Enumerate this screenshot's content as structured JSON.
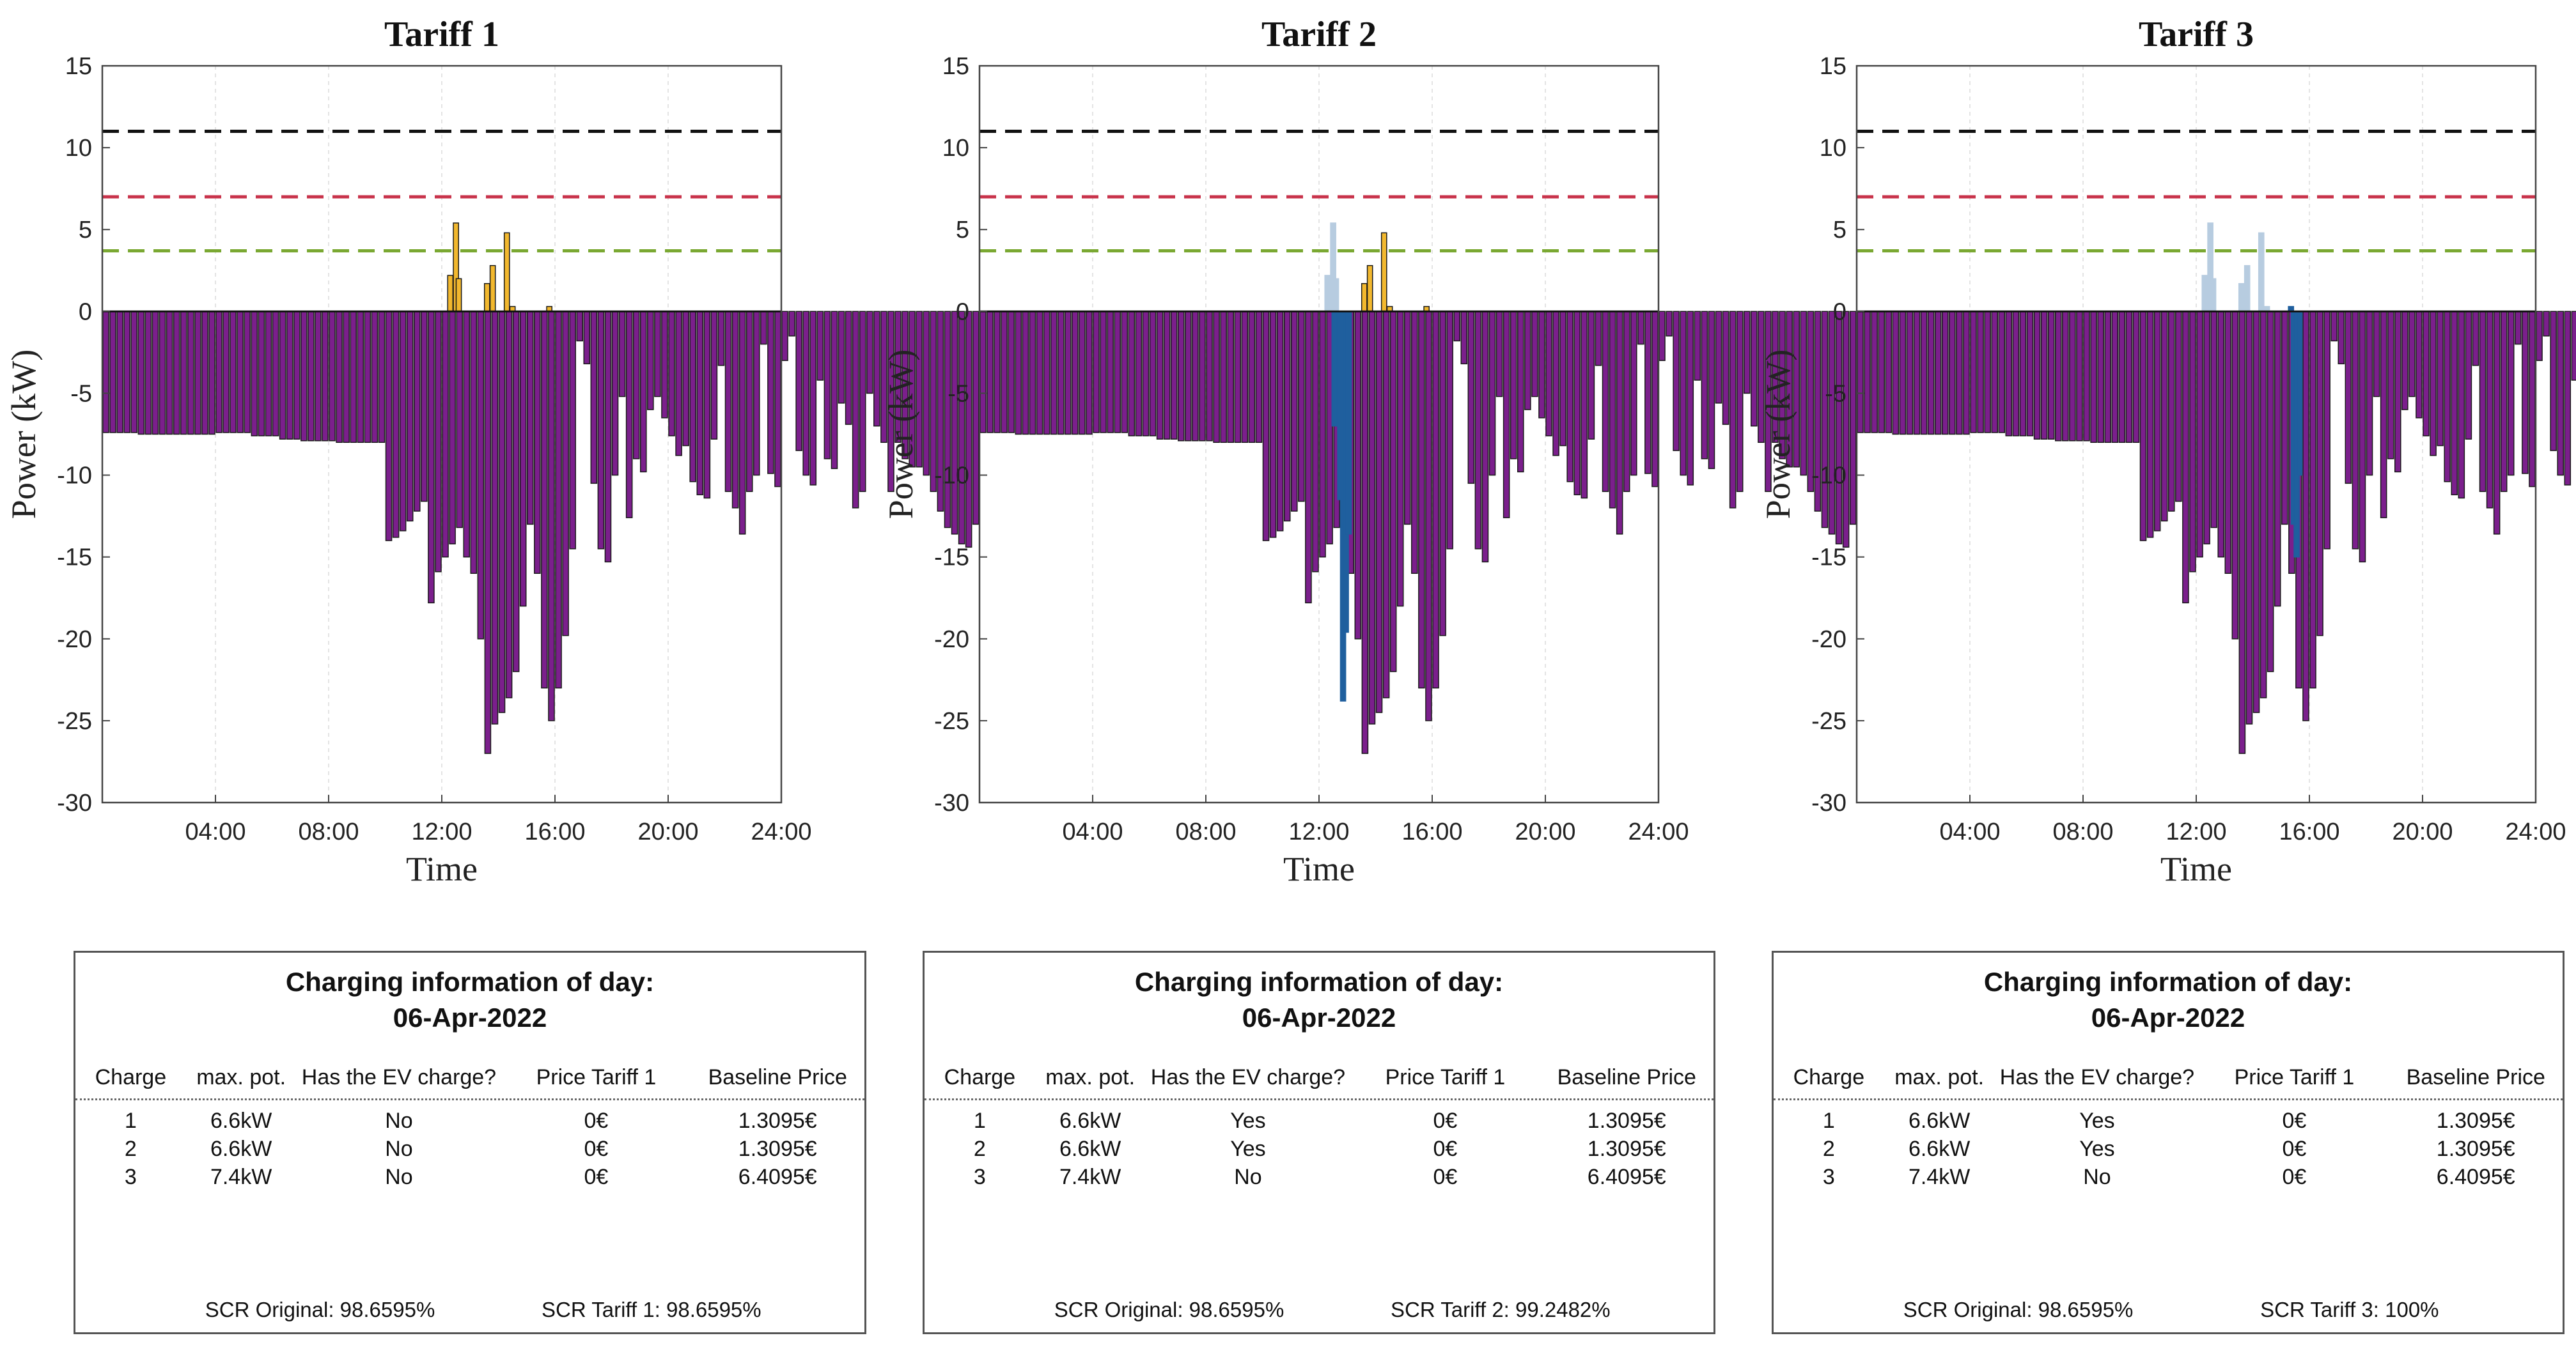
{
  "chart_data": [
    {
      "type": "bar",
      "title": "Tariff 1",
      "xlabel": "Time",
      "ylabel": "Power (kW)",
      "ylim": [
        -30,
        15
      ],
      "xlim": [
        0,
        24
      ],
      "yticks": [
        "15",
        "10",
        "5",
        "0",
        "-5",
        "-10",
        "-15",
        "-20",
        "-25",
        "-30"
      ],
      "xticks": [
        "04:00",
        "08:00",
        "12:00",
        "16:00",
        "20:00",
        "24:00"
      ],
      "ref_lines": [
        {
          "name": "limit-black",
          "value": 11,
          "color": "#111111"
        },
        {
          "name": "limit-red",
          "value": 7,
          "color": "#c8324a"
        },
        {
          "name": "limit-green",
          "value": 3.7,
          "color": "#7aa832"
        }
      ],
      "step_hours": 0.25,
      "series": [
        {
          "name": "Net power",
          "color": "#7b1f8c",
          "values": [
            -7.4,
            -7.4,
            -7.4,
            -7.4,
            -7.4,
            -7.5,
            -7.5,
            -7.5,
            -7.5,
            -7.5,
            -7.5,
            -7.5,
            -7.5,
            -7.5,
            -7.5,
            -7.5,
            -7.4,
            -7.4,
            -7.4,
            -7.4,
            -7.4,
            -7.6,
            -7.6,
            -7.6,
            -7.6,
            -7.8,
            -7.8,
            -7.8,
            -7.9,
            -7.9,
            -7.9,
            -7.9,
            -7.9,
            -8,
            -8,
            -8,
            -8,
            -8,
            -8,
            -8,
            -14,
            -13.8,
            -13.4,
            -12.8,
            -12.2,
            -11.6,
            -17.8,
            -15.9,
            -15,
            -14.2,
            -13.2,
            -15,
            -16,
            -20,
            -27,
            -25.2,
            -24.5,
            -23.6,
            -22,
            -18,
            -13,
            -16,
            -23,
            -25,
            -23,
            -19.8,
            -14.5,
            -1.8,
            -3.2,
            -10.5,
            -14.5,
            -15.3,
            -10,
            -5.2,
            -12.6,
            -9,
            -9.8,
            -6,
            -5.2,
            -6.5,
            -7.6,
            -8.8,
            -8.2,
            -10.4,
            -11.2,
            -11.4,
            -7.8,
            -3.3,
            -11,
            -12,
            -13.6,
            -11,
            -10,
            -2,
            -9.9,
            -10.7,
            -3,
            -1.5,
            -8.5,
            -10,
            -10.6,
            -4.2,
            -9,
            -9.6,
            -5.6,
            -6.9,
            -12,
            -11,
            -5,
            -7,
            -8,
            -11,
            -8,
            -9,
            -9.5,
            -9.5,
            -10,
            -11,
            -12.2,
            -13.2,
            -13.6,
            -14.2,
            -14.4,
            -13,
            -12.4,
            -12.4,
            -12.4,
            -12.4,
            -12.4,
            -12.4,
            -11.4,
            -11.4,
            -11.4,
            -11.4,
            -11.4,
            -11.4,
            -11.4,
            -9.9,
            -9.9,
            -9.9,
            -9.9,
            -9.9,
            -9.9,
            -9.6,
            -9.6,
            -9.6,
            -9.6,
            -9.6,
            -9.6,
            -6,
            -6,
            -6,
            -6,
            -6,
            -6,
            -6,
            -6,
            -6
          ]
        },
        {
          "name": "Tariff 1 EV",
          "color": "#f2b82e",
          "values": [
            [
              12.3,
              2.2
            ],
            [
              12.5,
              5.4
            ],
            [
              12.6,
              2.0
            ],
            [
              13.6,
              1.7
            ],
            [
              13.8,
              2.8
            ],
            [
              14.3,
              4.8
            ],
            [
              14.5,
              0.3
            ],
            [
              15.8,
              0.3
            ]
          ]
        }
      ],
      "info": {
        "title_line1": "Charging information of day:",
        "title_line2": "06-Apr-2022",
        "headers": [
          "Charge",
          "max. pot.",
          "Has the EV charge?",
          "Price Tariff 1",
          "Baseline Price"
        ],
        "rows": [
          [
            "1",
            "6.6kW",
            "No",
            "0€",
            "1.3095€"
          ],
          [
            "2",
            "6.6kW",
            "No",
            "0€",
            "1.3095€"
          ],
          [
            "3",
            "7.4kW",
            "No",
            "0€",
            "6.4095€"
          ]
        ],
        "scr_original": "SCR Original: 98.6595%",
        "scr_tariff": "SCR Tariff 1: 98.6595%"
      }
    },
    {
      "type": "bar",
      "title": "Tariff 2",
      "xlabel": "Time",
      "ylabel": "Power (kW)",
      "ylim": [
        -30,
        15
      ],
      "xlim": [
        0,
        24
      ],
      "yticks": [
        "15",
        "10",
        "5",
        "0",
        "-5",
        "-10",
        "-15",
        "-20",
        "-25",
        "-30"
      ],
      "xticks": [
        "04:00",
        "08:00",
        "12:00",
        "16:00",
        "20:00",
        "24:00"
      ],
      "ref_lines": [
        {
          "name": "limit-black",
          "value": 11,
          "color": "#111111"
        },
        {
          "name": "limit-red",
          "value": 7,
          "color": "#c8324a"
        },
        {
          "name": "limit-green",
          "value": 3.7,
          "color": "#7aa832"
        }
      ],
      "step_hours": 0.25,
      "series": [
        {
          "name": "Net power",
          "color": "#7b1f8c",
          "values": [
            -7.4,
            -7.4,
            -7.4,
            -7.4,
            -7.4,
            -7.5,
            -7.5,
            -7.5,
            -7.5,
            -7.5,
            -7.5,
            -7.5,
            -7.5,
            -7.5,
            -7.5,
            -7.5,
            -7.4,
            -7.4,
            -7.4,
            -7.4,
            -7.4,
            -7.6,
            -7.6,
            -7.6,
            -7.6,
            -7.8,
            -7.8,
            -7.8,
            -7.9,
            -7.9,
            -7.9,
            -7.9,
            -7.9,
            -8,
            -8,
            -8,
            -8,
            -8,
            -8,
            -8,
            -14,
            -13.8,
            -13.4,
            -12.8,
            -12.2,
            -11.6,
            -17.8,
            -15.9,
            -15,
            -14.2,
            -13.2,
            -15,
            -16,
            -20,
            -27,
            -25.2,
            -24.5,
            -23.6,
            -22,
            -18,
            -13,
            -16,
            -23,
            -25,
            -23,
            -19.8,
            -14.5,
            -1.8,
            -3.2,
            -10.5,
            -14.5,
            -15.3,
            -10,
            -5.2,
            -12.6,
            -9,
            -9.8,
            -6,
            -5.2,
            -6.5,
            -7.6,
            -8.8,
            -8.2,
            -10.4,
            -11.2,
            -11.4,
            -7.8,
            -3.3,
            -11,
            -12,
            -13.6,
            -11,
            -10,
            -2,
            -9.9,
            -10.7,
            -3,
            -1.5,
            -8.5,
            -10,
            -10.6,
            -4.2,
            -9,
            -9.6,
            -5.6,
            -6.9,
            -12,
            -11,
            -5,
            -7,
            -8,
            -11,
            -8,
            -9,
            -9.5,
            -9.5,
            -10,
            -11,
            -12.2,
            -13.2,
            -13.6,
            -14.2,
            -14.4,
            -13,
            -12.4,
            -12.4,
            -12.4,
            -12.4,
            -12.4,
            -12.4,
            -11.4,
            -11.4,
            -11.4,
            -11.4,
            -11.4,
            -11.4,
            -11.4,
            -9.9,
            -9.9,
            -9.9,
            -9.9,
            -9.9,
            -9.9,
            -9.6,
            -9.6,
            -9.6,
            -9.6,
            -9.6,
            -9.6,
            -6,
            -6,
            -6,
            -6,
            -6,
            -6,
            -6,
            -6,
            -6
          ]
        },
        {
          "name": "Tariff 1 EV (shifted)",
          "color": "#b7cce0",
          "values": [
            [
              12.3,
              2.2
            ],
            [
              12.5,
              5.4
            ],
            [
              12.6,
              2.0
            ]
          ]
        },
        {
          "name": "Tariff 2 EV",
          "color": "#f2b82e",
          "values": [
            [
              13.6,
              1.7
            ],
            [
              13.8,
              2.8
            ],
            [
              14.3,
              4.8
            ],
            [
              14.5,
              0.3
            ],
            [
              15.8,
              0.3
            ]
          ]
        },
        {
          "name": "Tariff 2 shift",
          "color": "#1f5f9e",
          "values": [
            [
              12.55,
              -7
            ],
            [
              12.75,
              -11.5
            ],
            [
              12.85,
              -23.8
            ],
            [
              12.95,
              -19.6
            ],
            [
              13.05,
              -13.6
            ]
          ]
        }
      ],
      "info": {
        "title_line1": "Charging information of day:",
        "title_line2": "06-Apr-2022",
        "headers": [
          "Charge",
          "max. pot.",
          "Has the EV charge?",
          "Price Tariff 1",
          "Baseline Price"
        ],
        "rows": [
          [
            "1",
            "6.6kW",
            "Yes",
            "0€",
            "1.3095€"
          ],
          [
            "2",
            "6.6kW",
            "Yes",
            "0€",
            "1.3095€"
          ],
          [
            "3",
            "7.4kW",
            "No",
            "0€",
            "6.4095€"
          ]
        ],
        "scr_original": "SCR Original: 98.6595%",
        "scr_tariff": "SCR Tariff 2: 99.2482%"
      }
    },
    {
      "type": "bar",
      "title": "Tariff 3",
      "xlabel": "Time",
      "ylabel": "Power (kW)",
      "ylim": [
        -30,
        15
      ],
      "xlim": [
        0,
        24
      ],
      "yticks": [
        "15",
        "10",
        "5",
        "0",
        "-5",
        "-10",
        "-15",
        "-20",
        "-25",
        "-30"
      ],
      "xticks": [
        "04:00",
        "08:00",
        "12:00",
        "16:00",
        "20:00",
        "24:00"
      ],
      "ref_lines": [
        {
          "name": "limit-black",
          "value": 11,
          "color": "#111111"
        },
        {
          "name": "limit-red",
          "value": 7,
          "color": "#c8324a"
        },
        {
          "name": "limit-green",
          "value": 3.7,
          "color": "#7aa832"
        }
      ],
      "step_hours": 0.25,
      "series": [
        {
          "name": "Net power",
          "color": "#7b1f8c",
          "values": [
            -7.4,
            -7.4,
            -7.4,
            -7.4,
            -7.4,
            -7.5,
            -7.5,
            -7.5,
            -7.5,
            -7.5,
            -7.5,
            -7.5,
            -7.5,
            -7.5,
            -7.5,
            -7.5,
            -7.4,
            -7.4,
            -7.4,
            -7.4,
            -7.4,
            -7.6,
            -7.6,
            -7.6,
            -7.6,
            -7.8,
            -7.8,
            -7.8,
            -7.9,
            -7.9,
            -7.9,
            -7.9,
            -7.9,
            -8,
            -8,
            -8,
            -8,
            -8,
            -8,
            -8,
            -14,
            -13.8,
            -13.4,
            -12.8,
            -12.2,
            -11.6,
            -17.8,
            -15.9,
            -15,
            -14.2,
            -13.2,
            -15,
            -16,
            -20,
            -27,
            -25.2,
            -24.5,
            -23.6,
            -22,
            -18,
            -13,
            -16,
            -23,
            -25,
            -23,
            -19.8,
            -14.5,
            -1.8,
            -3.2,
            -10.5,
            -14.5,
            -15.3,
            -10,
            -5.2,
            -12.6,
            -9,
            -9.8,
            -6,
            -5.2,
            -6.5,
            -7.6,
            -8.8,
            -8.2,
            -10.4,
            -11.2,
            -11.4,
            -7.8,
            -3.3,
            -11,
            -12,
            -13.6,
            -11,
            -10,
            -2,
            -9.9,
            -10.7,
            -3,
            -1.5,
            -8.5,
            -10,
            -10.6,
            -4.2,
            -9,
            -9.6,
            -5.6,
            -6.9,
            -12,
            -11,
            -5,
            -7,
            -8,
            -11,
            -8,
            -9,
            -9.5,
            -9.5,
            -10,
            -11,
            -12.2,
            -13.2,
            -13.6,
            -14.2,
            -14.4,
            -13,
            -12.4,
            -12.4,
            -12.4,
            -12.4,
            -12.4,
            -12.4,
            -11.4,
            -11.4,
            -11.4,
            -11.4,
            -11.4,
            -11.4,
            -11.4,
            -9.9,
            -9.9,
            -9.9,
            -9.9,
            -9.9,
            -9.9,
            -9.6,
            -9.6,
            -9.6,
            -9.6,
            -9.6,
            -9.6,
            -6,
            -6,
            -6,
            -6,
            -6,
            -6,
            -6,
            -6,
            -6
          ]
        },
        {
          "name": "Tariff 1 EV (shifted)",
          "color": "#b7cce0",
          "values": [
            [
              12.3,
              2.2
            ],
            [
              12.5,
              5.4
            ],
            [
              12.6,
              2.0
            ],
            [
              13.6,
              1.7
            ],
            [
              13.8,
              2.8
            ],
            [
              14.3,
              4.8
            ],
            [
              14.5,
              0.3
            ]
          ]
        },
        {
          "name": "Tariff 3 shift",
          "color": "#1f5f9e",
          "values": [
            [
              15.35,
              0.3
            ],
            [
              15.45,
              -13
            ],
            [
              15.55,
              -15
            ],
            [
              15.65,
              -10
            ]
          ]
        }
      ],
      "info": {
        "title_line1": "Charging information of day:",
        "title_line2": "06-Apr-2022",
        "headers": [
          "Charge",
          "max. pot.",
          "Has the EV charge?",
          "Price Tariff 1",
          "Baseline Price"
        ],
        "rows": [
          [
            "1",
            "6.6kW",
            "Yes",
            "0€",
            "1.3095€"
          ],
          [
            "2",
            "6.6kW",
            "Yes",
            "0€",
            "1.3095€"
          ],
          [
            "3",
            "7.4kW",
            "No",
            "0€",
            "6.4095€"
          ]
        ],
        "scr_original": "SCR Original: 98.6595%",
        "scr_tariff": "SCR Tariff 3: 100%"
      }
    }
  ]
}
